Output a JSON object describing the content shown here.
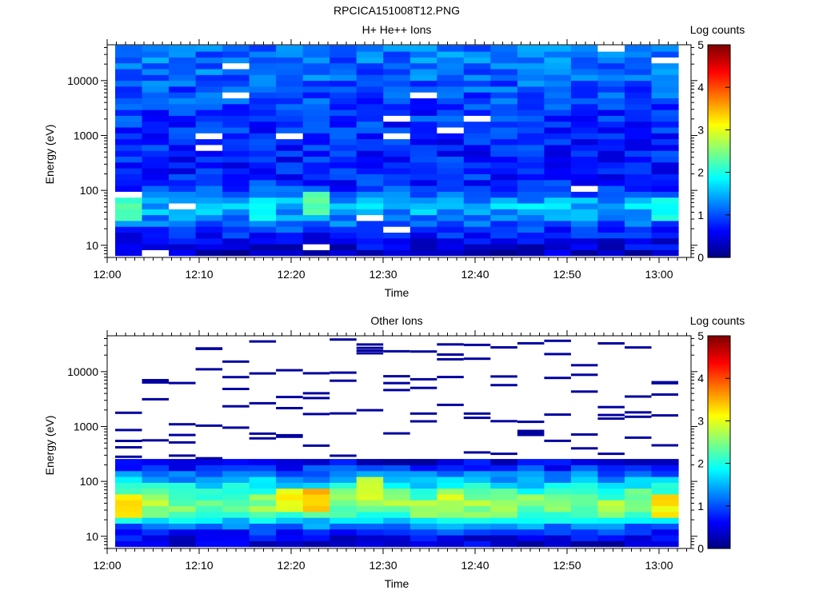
{
  "figure_title": "RPCICA151008T12.PNG",
  "colors": {
    "colormap": [
      "#00007f",
      "#0000ff",
      "#007fff",
      "#00ffff",
      "#7fff7f",
      "#ffff00",
      "#ff7f00",
      "#ff0000",
      "#7f0000"
    ],
    "no_data": "#ffffff"
  },
  "chart_data": [
    {
      "type": "heatmap",
      "title": "H+ He++ Ions",
      "xlabel": "Time",
      "ylabel": "Energy (eV)",
      "colorbar_label": "Log counts",
      "yscale": "log",
      "ylim": [
        6,
        45000
      ],
      "clim": [
        0,
        5
      ],
      "colorbar_ticks": [
        "0",
        "1",
        "2",
        "3",
        "4",
        "5"
      ],
      "x_ticks": [
        "12:00",
        "12:10",
        "12:20",
        "12:30",
        "12:40",
        "12:50",
        "13:00"
      ],
      "y_ticks": [
        "10",
        "100",
        "1000",
        "10000"
      ],
      "time_bins": [
        "12:00",
        "12:03",
        "12:06",
        "12:09",
        "12:12",
        "12:15",
        "12:18",
        "12:21",
        "12:24",
        "12:27",
        "12:30",
        "12:33",
        "12:36",
        "12:39",
        "12:42",
        "12:45",
        "12:48",
        "12:51",
        "12:54",
        "12:57",
        "13:00"
      ],
      "energy_profile": [
        {
          "e": 7,
          "v": 0.3
        },
        {
          "e": 12,
          "v": 0.6
        },
        {
          "e": 20,
          "v": 0.9
        },
        {
          "e": 35,
          "v": 1.3
        },
        {
          "e": 55,
          "v": 1.6
        },
        {
          "e": 90,
          "v": 1.0
        },
        {
          "e": 150,
          "v": 0.8
        },
        {
          "e": 300,
          "v": 0.75
        },
        {
          "e": 600,
          "v": 0.75
        },
        {
          "e": 1200,
          "v": 0.8
        },
        {
          "e": 3000,
          "v": 0.9
        },
        {
          "e": 10000,
          "v": 1.1
        },
        {
          "e": 40000,
          "v": 1.2
        }
      ],
      "variability": 0.35,
      "no_data_fraction": 0.02,
      "peak_cells": [
        {
          "t": "12:00",
          "e": 50,
          "v": 2.4
        },
        {
          "t": "12:15",
          "e": 50,
          "v": 2.2
        },
        {
          "t": "12:21",
          "e": 55,
          "v": 2.6
        },
        {
          "t": "13:00",
          "e": 50,
          "v": 2.1
        }
      ]
    },
    {
      "type": "heatmap",
      "title": "Other Ions",
      "xlabel": "Time",
      "ylabel": "Energy (eV)",
      "colorbar_label": "Log counts",
      "yscale": "log",
      "ylim": [
        6,
        45000
      ],
      "clim": [
        0,
        5
      ],
      "colorbar_ticks": [
        "0",
        "1",
        "2",
        "3",
        "4",
        "5"
      ],
      "x_ticks": [
        "12:00",
        "12:10",
        "12:20",
        "12:30",
        "12:40",
        "12:50",
        "13:00"
      ],
      "y_ticks": [
        "10",
        "100",
        "1000",
        "10000"
      ],
      "time_bins": [
        "12:00",
        "12:03",
        "12:06",
        "12:09",
        "12:12",
        "12:15",
        "12:18",
        "12:21",
        "12:24",
        "12:27",
        "12:30",
        "12:33",
        "12:36",
        "12:39",
        "12:42",
        "12:45",
        "12:48",
        "12:51",
        "12:54",
        "12:57",
        "13:00"
      ],
      "energy_profile": [
        {
          "e": 7,
          "v": 0.35
        },
        {
          "e": 11,
          "v": 0.7
        },
        {
          "e": 17,
          "v": 1.4
        },
        {
          "e": 25,
          "v": 2.3
        },
        {
          "e": 40,
          "v": 2.6
        },
        {
          "e": 65,
          "v": 2.2
        },
        {
          "e": 110,
          "v": 1.5
        },
        {
          "e": 180,
          "v": 0.8
        },
        {
          "e": 260,
          "v": 0.3
        }
      ],
      "variability": 0.35,
      "profile_max_energy": 240,
      "sparse_lines": {
        "min_energy": 260,
        "max_energy": 40000,
        "per_column": 5,
        "value": 0.15
      },
      "peak_cells": [
        {
          "t": "12:00",
          "e": 40,
          "v": 3.5
        },
        {
          "t": "12:21",
          "e": 45,
          "v": 3.7
        },
        {
          "t": "12:18",
          "e": 45,
          "v": 3.3
        },
        {
          "t": "13:00",
          "e": 40,
          "v": 3.4
        },
        {
          "t": "12:27",
          "e": 80,
          "v": 3.0
        },
        {
          "t": "12:36",
          "e": 45,
          "v": 3.0
        }
      ]
    }
  ]
}
